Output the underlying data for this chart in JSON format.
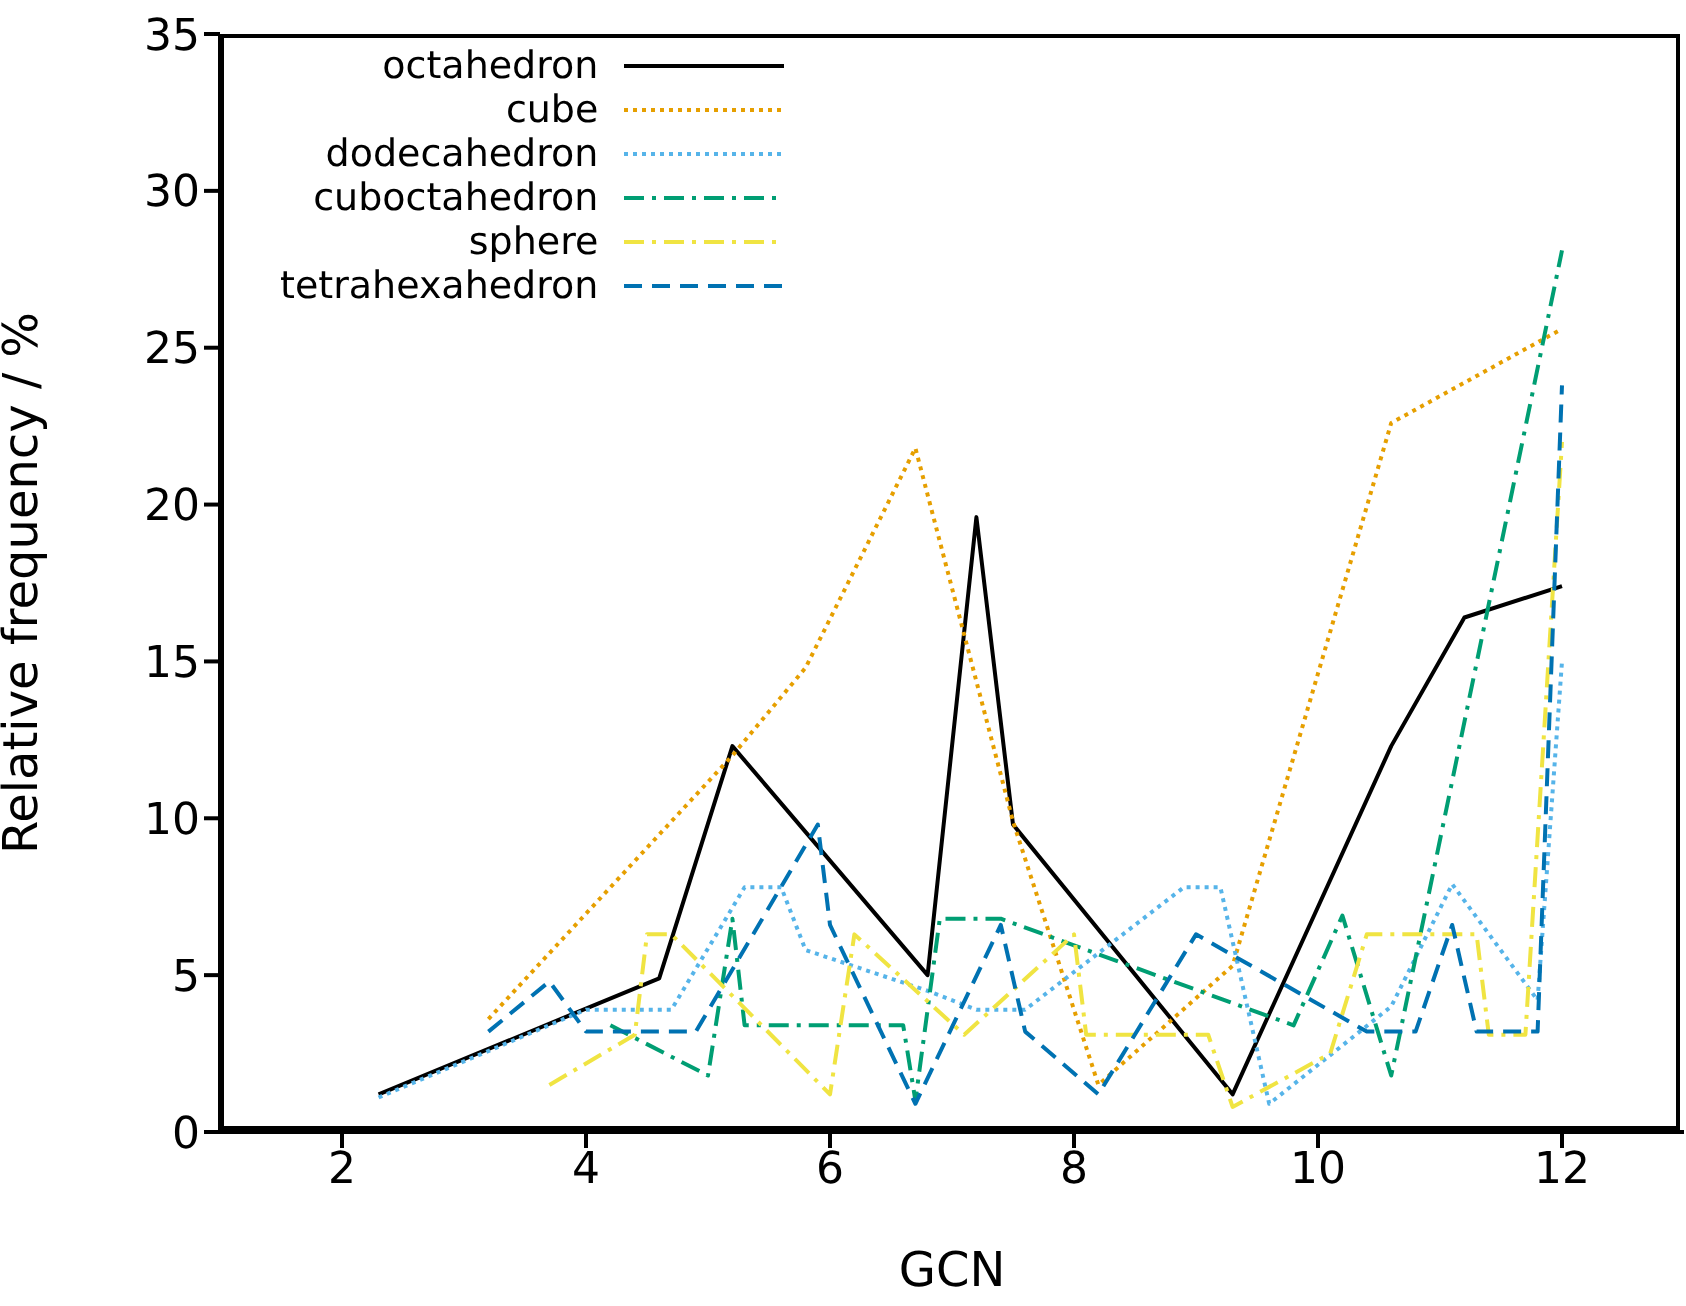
{
  "chart_data": {
    "type": "line",
    "xlabel": "GCN",
    "ylabel": "Relative frequency / %",
    "xlim": [
      1,
      13
    ],
    "xticks": [
      2,
      4,
      6,
      8,
      10,
      12
    ],
    "ylim": [
      0,
      35
    ],
    "yticks": [
      0,
      5,
      10,
      15,
      20,
      25,
      30,
      35
    ],
    "legend": "top left",
    "marker": "none",
    "series": [
      {
        "name": "octahedron",
        "color": "#000000",
        "line_style": "solid",
        "x": [
          2.3,
          4.6,
          5.2,
          6.8,
          7.2,
          7.5,
          9.3,
          10.6,
          11.2,
          12
        ],
        "values": [
          1.2,
          4.9,
          12.3,
          5.0,
          19.6,
          9.8,
          1.2,
          12.3,
          16.4,
          17.4
        ]
      },
      {
        "name": "cube",
        "color": "#e69f00",
        "line_style": "dotted",
        "x": [
          3.2,
          5.2,
          5.8,
          6.7,
          7.5,
          8.2,
          9.3,
          10.6,
          12
        ],
        "values": [
          3.6,
          12.0,
          14.8,
          21.8,
          9.9,
          1.5,
          5.3,
          22.6,
          25.6
        ]
      },
      {
        "name": "dodecahedron",
        "color": "#56b4e9",
        "line_style": "dotted",
        "x": [
          2.3,
          4.0,
          4.7,
          5.3,
          5.6,
          5.8,
          6.8,
          7.2,
          7.6,
          8.9,
          9.2,
          9.6,
          10.6,
          11.1,
          11.8,
          12
        ],
        "values": [
          1.1,
          3.9,
          3.9,
          7.8,
          7.8,
          5.8,
          4.5,
          3.9,
          3.9,
          7.8,
          7.8,
          0.9,
          4.0,
          7.9,
          4.2,
          15.0
        ]
      },
      {
        "name": "cuboctahedron",
        "color": "#009e73",
        "line_style": "dashdot",
        "x": [
          4.2,
          5.0,
          5.2,
          5.3,
          6.6,
          6.7,
          6.9,
          7.4,
          9.8,
          10.2,
          10.6,
          12
        ],
        "values": [
          3.4,
          1.8,
          6.8,
          3.4,
          3.4,
          1.0,
          6.8,
          6.8,
          3.4,
          6.9,
          1.8,
          28.1
        ]
      },
      {
        "name": "sphere",
        "color": "#f0e442",
        "line_style": "dashdot",
        "x": [
          3.7,
          4.4,
          4.5,
          4.7,
          6.0,
          6.2,
          7.1,
          8.0,
          8.1,
          9.1,
          9.3,
          10.1,
          10.4,
          11.3,
          11.4,
          11.7,
          12
        ],
        "values": [
          1.5,
          3.1,
          6.3,
          6.3,
          1.2,
          6.3,
          3.1,
          6.3,
          3.1,
          3.1,
          0.8,
          2.5,
          6.3,
          6.3,
          3.1,
          3.1,
          22.0
        ]
      },
      {
        "name": "tetrahexahedron",
        "color": "#0072b2",
        "line_style": "dashed",
        "x": [
          3.2,
          3.7,
          4.0,
          4.9,
          5.9,
          6.0,
          6.7,
          7.4,
          7.6,
          8.2,
          9.0,
          10.4,
          10.8,
          11.1,
          11.3,
          11.8,
          12
        ],
        "values": [
          3.2,
          4.8,
          3.2,
          3.2,
          9.8,
          6.6,
          0.9,
          6.6,
          3.2,
          1.2,
          6.3,
          3.2,
          3.2,
          6.6,
          3.2,
          3.2,
          23.8
        ]
      }
    ]
  }
}
